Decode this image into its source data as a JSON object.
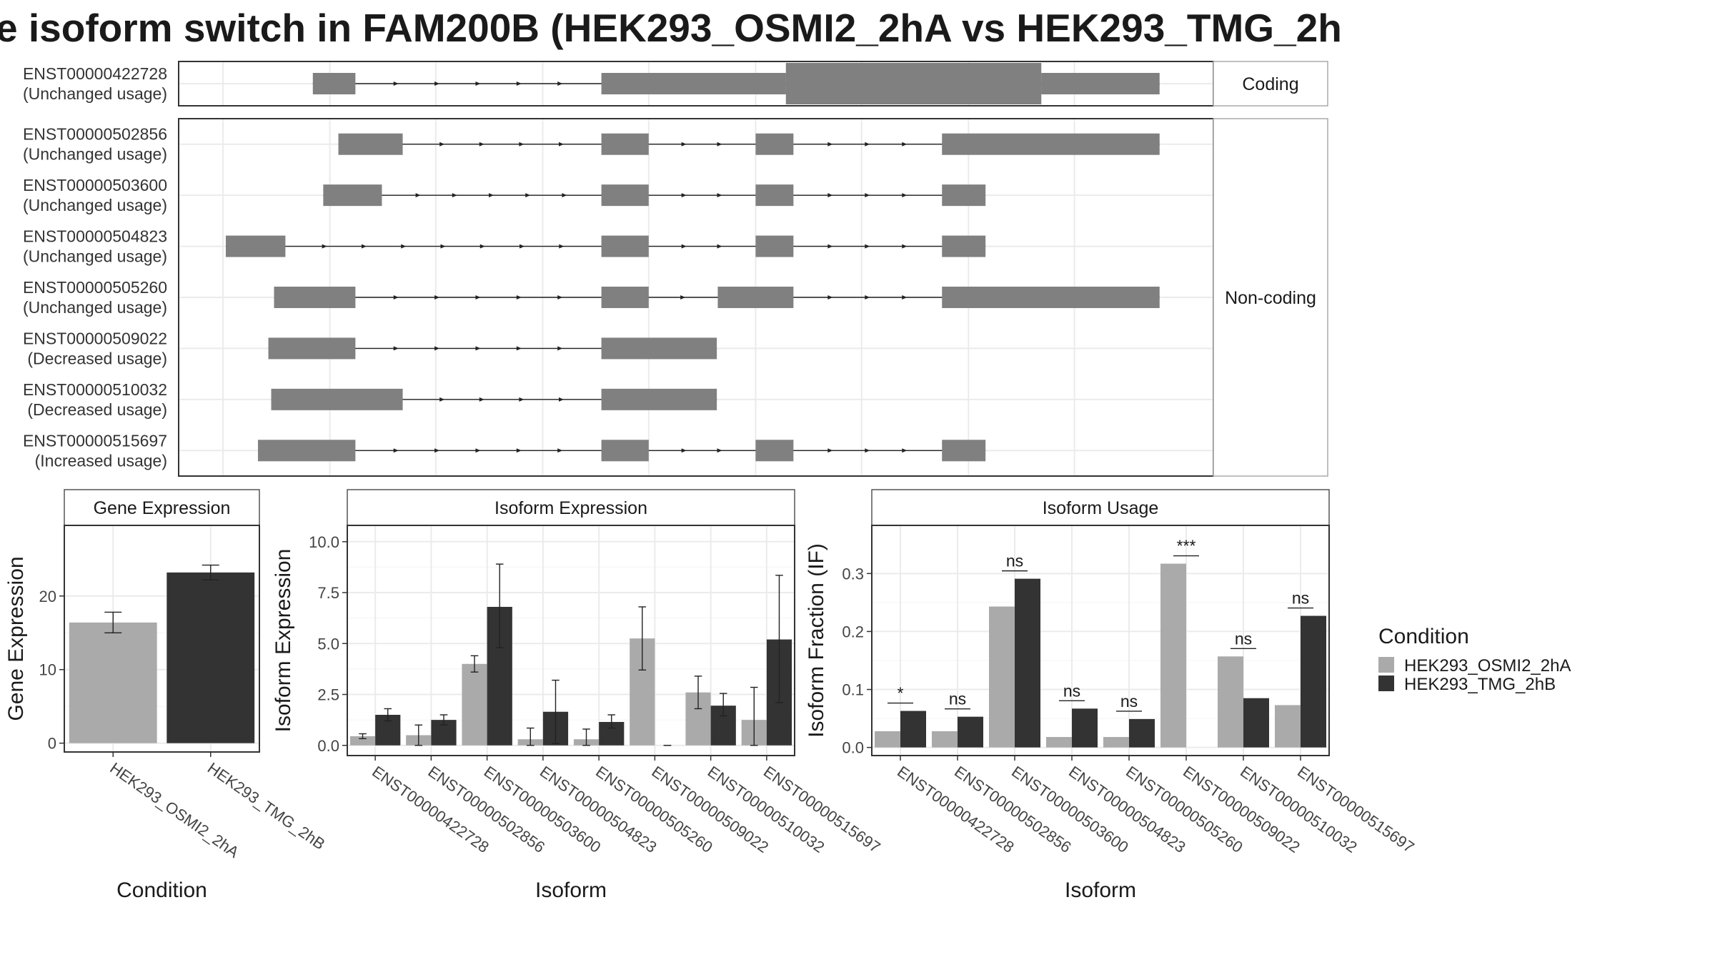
{
  "title": "e isoform switch in FAM200B (HEK293_OSMI2_2hA vs HEK293_TMG_2h",
  "colors": {
    "condition_a": "#aaaaaa",
    "condition_b": "#333333",
    "exon": "#808080"
  },
  "transcripts": {
    "strip_coding": "Coding",
    "strip_noncoding": "Non-coding",
    "coding": [
      {
        "id": "ENST00000422728",
        "usage": "(Unchanged usage)",
        "exons": [
          [
            0.095,
            0.14
          ],
          [
            0.4,
            0.595
          ],
          [
            0.595,
            0.865
          ],
          [
            0.865,
            0.99
          ]
        ],
        "thick": [
          [
            0.595,
            0.865
          ]
        ]
      }
    ],
    "noncoding": [
      {
        "id": "ENST00000502856",
        "usage": "(Unchanged usage)",
        "exons": [
          [
            0.122,
            0.19
          ],
          [
            0.4,
            0.45
          ],
          [
            0.563,
            0.603
          ],
          [
            0.76,
            0.99
          ]
        ]
      },
      {
        "id": "ENST00000503600",
        "usage": "(Unchanged usage)",
        "exons": [
          [
            0.106,
            0.168
          ],
          [
            0.4,
            0.45
          ],
          [
            0.563,
            0.603
          ],
          [
            0.76,
            0.806
          ]
        ]
      },
      {
        "id": "ENST00000504823",
        "usage": "(Unchanged usage)",
        "exons": [
          [
            0.003,
            0.066
          ],
          [
            0.4,
            0.45
          ],
          [
            0.563,
            0.603
          ],
          [
            0.76,
            0.806
          ]
        ]
      },
      {
        "id": "ENST00000505260",
        "usage": "(Unchanged usage)",
        "exons": [
          [
            0.054,
            0.14
          ],
          [
            0.4,
            0.45
          ],
          [
            0.523,
            0.603
          ],
          [
            0.76,
            0.99
          ]
        ]
      },
      {
        "id": "ENST00000509022",
        "usage": "(Decreased usage)",
        "exons": [
          [
            0.048,
            0.14
          ],
          [
            0.4,
            0.522
          ]
        ]
      },
      {
        "id": "ENST00000510032",
        "usage": "(Decreased usage)",
        "exons": [
          [
            0.051,
            0.19
          ],
          [
            0.4,
            0.522
          ]
        ]
      },
      {
        "id": "ENST00000515697",
        "usage": "(Increased usage)",
        "exons": [
          [
            0.037,
            0.14
          ],
          [
            0.4,
            0.45
          ],
          [
            0.563,
            0.603
          ],
          [
            0.76,
            0.806
          ]
        ]
      }
    ]
  },
  "chart_data": [
    {
      "type": "bar",
      "title": "Gene Expression",
      "xlabel": "Condition",
      "ylabel": "Gene Expression",
      "categories": [
        "HEK293_OSMI2_2hA",
        "HEK293_TMG_2hB"
      ],
      "values": [
        16.4,
        23.2
      ],
      "errors": [
        [
          15.0,
          17.8
        ],
        [
          22.2,
          24.2
        ]
      ],
      "ylim": [
        -1.2,
        29.6
      ],
      "yticks": [
        0,
        10,
        20
      ]
    },
    {
      "type": "bar",
      "title": "Isoform Expression",
      "xlabel": "Isoform",
      "ylabel": "Isoform Expression",
      "categories": [
        "ENST00000422728",
        "ENST00000502856",
        "ENST00000503600",
        "ENST00000504823",
        "ENST00000505260",
        "ENST00000509022",
        "ENST00000510032",
        "ENST00000515697"
      ],
      "series": [
        {
          "name": "HEK293_OSMI2_2hA",
          "values": [
            0.45,
            0.5,
            4.0,
            0.3,
            0.3,
            5.25,
            2.6,
            1.25
          ],
          "errors": [
            [
              0.33,
              0.57
            ],
            [
              0.0,
              1.0
            ],
            [
              3.6,
              4.4
            ],
            [
              0.0,
              0.85
            ],
            [
              0.0,
              0.8
            ],
            [
              3.7,
              6.8
            ],
            [
              1.8,
              3.4
            ],
            [
              0.0,
              2.85
            ]
          ]
        },
        {
          "name": "HEK293_TMG_2hB",
          "values": [
            1.5,
            1.25,
            6.8,
            1.65,
            1.15,
            0.0,
            1.95,
            5.2
          ],
          "errors": [
            [
              1.2,
              1.8
            ],
            [
              1.0,
              1.5
            ],
            [
              4.8,
              8.9
            ],
            [
              0.1,
              3.2
            ],
            [
              0.85,
              1.5
            ],
            [
              0.0,
              0.0
            ],
            [
              1.45,
              2.55
            ],
            [
              2.1,
              8.35
            ]
          ]
        }
      ],
      "ylim": [
        -0.5,
        10.8
      ],
      "yticks": [
        0.0,
        2.5,
        5.0,
        7.5,
        10.0
      ]
    },
    {
      "type": "bar",
      "title": "Isoform Usage",
      "xlabel": "Isoform",
      "ylabel": "Isoform Fraction (IF)",
      "categories": [
        "ENST00000422728",
        "ENST00000502856",
        "ENST00000503600",
        "ENST00000504823",
        "ENST00000505260",
        "ENST00000509022",
        "ENST00000510032",
        "ENST00000515697"
      ],
      "series": [
        {
          "name": "HEK293_OSMI2_2hA",
          "values": [
            0.028,
            0.028,
            0.243,
            0.018,
            0.018,
            0.317,
            0.157,
            0.073
          ]
        },
        {
          "name": "HEK293_TMG_2hB",
          "values": [
            0.063,
            0.053,
            0.291,
            0.067,
            0.049,
            0.0,
            0.085,
            0.227
          ]
        }
      ],
      "significance": [
        "*",
        "ns",
        "ns",
        "ns",
        "ns",
        "***",
        "ns",
        "ns"
      ],
      "ylim": [
        -0.014,
        0.383
      ],
      "yticks": [
        0.0,
        0.1,
        0.2,
        0.3
      ],
      "yticklabels": [
        "0.0",
        "0.1",
        "0.2",
        "0.3"
      ]
    }
  ],
  "legend": {
    "title": "Condition",
    "entries": [
      "HEK293_OSMI2_2hA",
      "HEK293_TMG_2hB"
    ]
  }
}
